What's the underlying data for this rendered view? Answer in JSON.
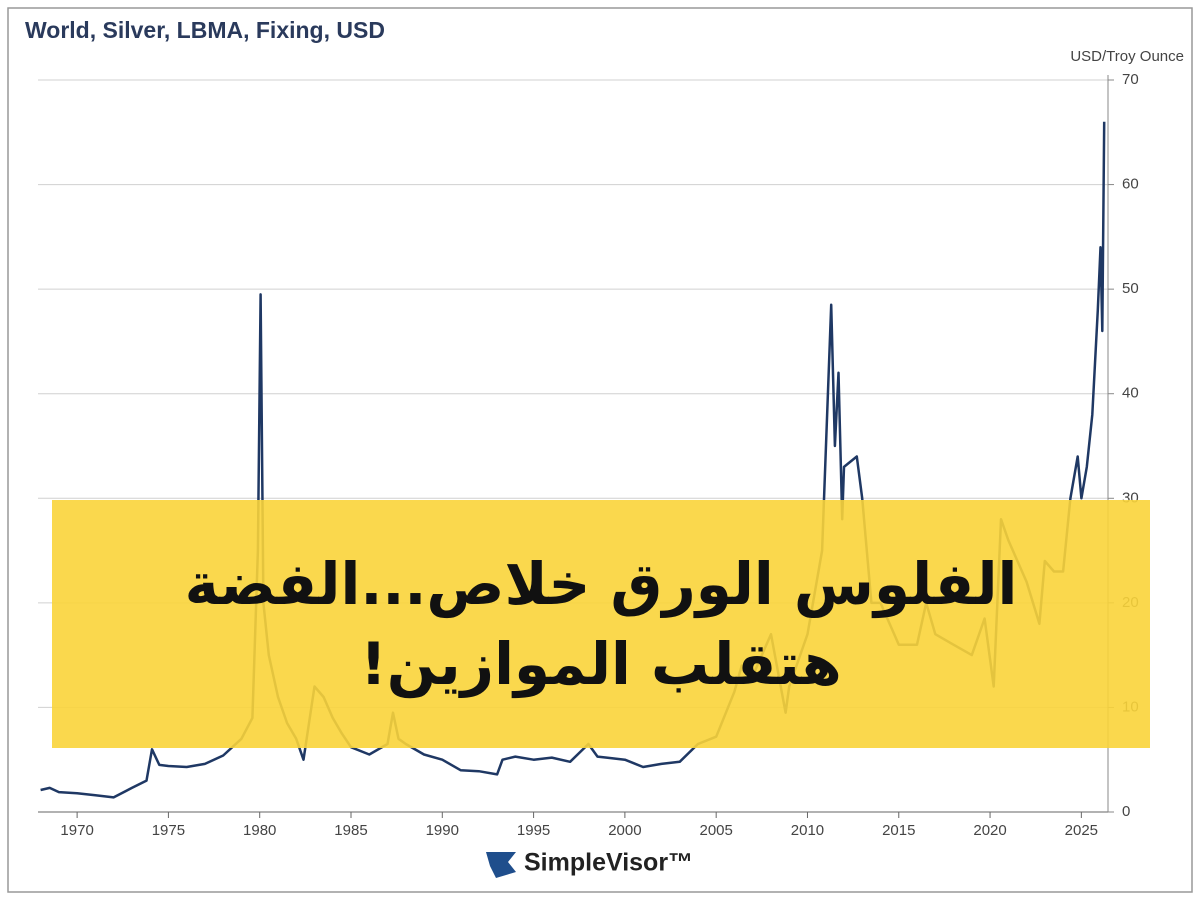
{
  "chart_data": {
    "type": "line",
    "title": "World, Silver, LBMA, Fixing, USD",
    "y_axis_label": "USD/Troy Ounce",
    "x": [
      1968.0,
      1968.5,
      1969.0,
      1970.0,
      1971.0,
      1972.0,
      1973.0,
      1973.8,
      1974.1,
      1974.5,
      1975.0,
      1976.0,
      1977.0,
      1978.0,
      1979.0,
      1979.6,
      1979.9,
      1980.05,
      1980.2,
      1980.5,
      1981.0,
      1981.5,
      1982.0,
      1982.4,
      1983.0,
      1983.5,
      1984.0,
      1984.5,
      1985.0,
      1986.0,
      1987.0,
      1987.3,
      1987.6,
      1988.0,
      1989.0,
      1990.0,
      1991.0,
      1992.0,
      1993.0,
      1993.3,
      1994.0,
      1995.0,
      1996.0,
      1997.0,
      1998.0,
      1998.5,
      1999.0,
      2000.0,
      2001.0,
      2002.0,
      2003.0,
      2004.0,
      2005.0,
      2006.0,
      2006.4,
      2007.0,
      2008.0,
      2008.8,
      2009.0,
      2010.0,
      2010.8,
      2011.3,
      2011.5,
      2011.7,
      2011.9,
      2012.0,
      2012.7,
      2013.0,
      2013.5,
      2014.0,
      2015.0,
      2016.0,
      2016.5,
      2017.0,
      2018.0,
      2019.0,
      2019.7,
      2020.2,
      2020.6,
      2021.0,
      2022.0,
      2022.7,
      2023.0,
      2023.5,
      2024.0,
      2024.4,
      2024.8,
      2025.0,
      2025.3,
      2025.6,
      2025.9,
      2026.05,
      2026.15,
      2026.25
    ],
    "series": [
      {
        "name": "Silver",
        "color": "#1f3864",
        "values": [
          2.1,
          2.3,
          1.9,
          1.8,
          1.6,
          1.4,
          2.3,
          3.0,
          6.0,
          4.5,
          4.4,
          4.3,
          4.6,
          5.4,
          7.0,
          9.0,
          25,
          49.5,
          20,
          15,
          11,
          8.5,
          7.0,
          5.0,
          12,
          11,
          9,
          7.5,
          6.2,
          5.5,
          6.5,
          9.5,
          7.0,
          6.5,
          5.5,
          5.0,
          4.0,
          3.9,
          3.6,
          5.0,
          5.3,
          5.0,
          5.2,
          4.8,
          6.5,
          5.3,
          5.2,
          5.0,
          4.3,
          4.6,
          4.8,
          6.5,
          7.2,
          11.5,
          14,
          13.0,
          17,
          9.5,
          12,
          17,
          25,
          48.5,
          35,
          42,
          28,
          33,
          34,
          30,
          20,
          20,
          16,
          16,
          20,
          17,
          16,
          15,
          18.5,
          12,
          28,
          26,
          22,
          18,
          24,
          23,
          23,
          30,
          34,
          30,
          33,
          38,
          48,
          54,
          46,
          66
        ]
      }
    ],
    "xlim": [
      1968.0,
      2026.35
    ],
    "xticks": [
      1970,
      1975,
      1980,
      1985,
      1990,
      1995,
      2000,
      2005,
      2010,
      2015,
      2020,
      2025
    ],
    "ylim": [
      0,
      70
    ],
    "yticks": [
      0,
      10,
      20,
      30,
      40,
      50,
      60,
      70
    ],
    "grid": true
  },
  "overlay": {
    "lines": [
      "الفلوس الورق خلاص...الفضة",
      "هتقلب الموازين!"
    ]
  },
  "brand": "SimpleVisor™"
}
